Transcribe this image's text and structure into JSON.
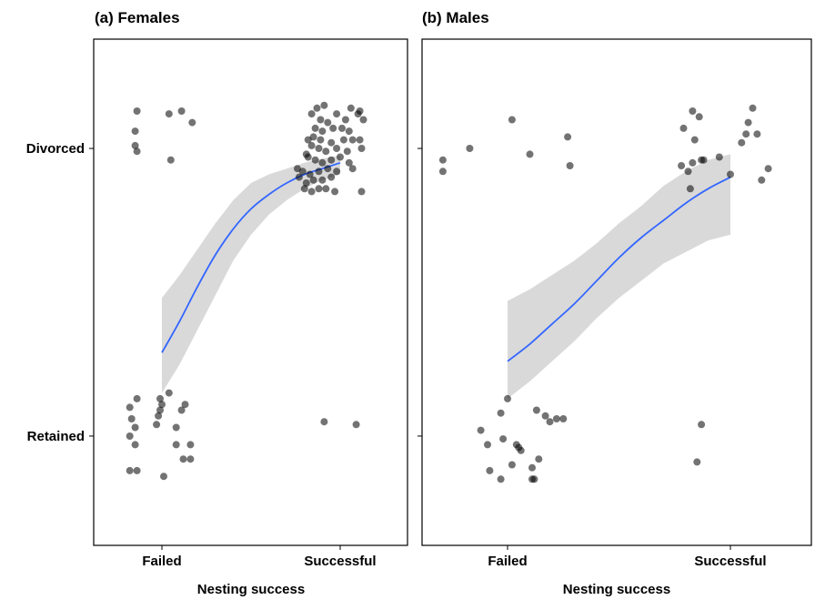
{
  "chart_data": [
    {
      "type": "scatter",
      "title": "(a) Females",
      "xlabel": "Nesting success",
      "ylabel": "",
      "x_categories": [
        "Failed",
        "Successful"
      ],
      "y_categories": [
        "Retained",
        "Divorced"
      ],
      "ylim": [
        -0.38,
        1.38
      ],
      "fit": {
        "color": "#3366ff",
        "x": [
          0,
          0.1,
          0.2,
          0.3,
          0.4,
          0.5,
          0.6,
          0.7,
          0.8,
          0.9,
          1.0
        ],
        "y": [
          0.29,
          0.4,
          0.52,
          0.63,
          0.72,
          0.79,
          0.84,
          0.88,
          0.91,
          0.93,
          0.95
        ],
        "ci_low": [
          0.15,
          0.25,
          0.37,
          0.49,
          0.61,
          0.7,
          0.77,
          0.82,
          0.86,
          0.89,
          0.91
        ],
        "ci_high": [
          0.48,
          0.56,
          0.65,
          0.74,
          0.82,
          0.88,
          0.91,
          0.93,
          0.95,
          0.965,
          0.975
        ]
      },
      "points": [
        {
          "x": -0.15,
          "y": 1.06
        },
        {
          "x": -0.14,
          "y": 1.13
        },
        {
          "x": -0.15,
          "y": 1.01
        },
        {
          "x": -0.14,
          "y": 0.99
        },
        {
          "x": 0.04,
          "y": 1.12
        },
        {
          "x": 0.11,
          "y": 1.13
        },
        {
          "x": 0.17,
          "y": 1.09
        },
        {
          "x": 0.05,
          "y": 0.96
        },
        {
          "x": -0.18,
          "y": 0.1
        },
        {
          "x": -0.14,
          "y": 0.13
        },
        {
          "x": -0.17,
          "y": 0.06
        },
        {
          "x": -0.15,
          "y": 0.03
        },
        {
          "x": -0.18,
          "y": 0.0
        },
        {
          "x": -0.15,
          "y": -0.03
        },
        {
          "x": -0.18,
          "y": -0.12
        },
        {
          "x": -0.14,
          "y": -0.12
        },
        {
          "x": -0.01,
          "y": 0.13
        },
        {
          "x": 0.04,
          "y": 0.15
        },
        {
          "x": 0.0,
          "y": 0.11
        },
        {
          "x": -0.01,
          "y": 0.09
        },
        {
          "x": -0.02,
          "y": 0.07
        },
        {
          "x": -0.03,
          "y": 0.04
        },
        {
          "x": 0.13,
          "y": 0.11
        },
        {
          "x": 0.11,
          "y": 0.09
        },
        {
          "x": 0.08,
          "y": 0.03
        },
        {
          "x": 0.08,
          "y": -0.03
        },
        {
          "x": 0.16,
          "y": -0.03
        },
        {
          "x": 0.16,
          "y": -0.08
        },
        {
          "x": 0.12,
          "y": -0.08
        },
        {
          "x": 0.01,
          "y": -0.14
        },
        {
          "x": 0.84,
          "y": 1.12
        },
        {
          "x": 0.87,
          "y": 1.14
        },
        {
          "x": 0.89,
          "y": 1.1
        },
        {
          "x": 0.93,
          "y": 1.09
        },
        {
          "x": 0.98,
          "y": 1.12
        },
        {
          "x": 1.03,
          "y": 1.1
        },
        {
          "x": 1.06,
          "y": 1.14
        },
        {
          "x": 1.1,
          "y": 1.12
        },
        {
          "x": 1.11,
          "y": 1.13
        },
        {
          "x": 1.13,
          "y": 1.1
        },
        {
          "x": 0.86,
          "y": 1.07
        },
        {
          "x": 0.9,
          "y": 1.06
        },
        {
          "x": 0.96,
          "y": 1.07
        },
        {
          "x": 1.01,
          "y": 1.07
        },
        {
          "x": 1.05,
          "y": 1.06
        },
        {
          "x": 0.82,
          "y": 1.03
        },
        {
          "x": 0.85,
          "y": 1.04
        },
        {
          "x": 0.89,
          "y": 1.03
        },
        {
          "x": 0.95,
          "y": 1.02
        },
        {
          "x": 1.02,
          "y": 1.03
        },
        {
          "x": 1.07,
          "y": 1.03
        },
        {
          "x": 1.11,
          "y": 1.03
        },
        {
          "x": 0.84,
          "y": 1.01
        },
        {
          "x": 0.88,
          "y": 1.0
        },
        {
          "x": 0.92,
          "y": 0.99
        },
        {
          "x": 0.98,
          "y": 1.0
        },
        {
          "x": 1.04,
          "y": 0.99
        },
        {
          "x": 1.12,
          "y": 1.0
        },
        {
          "x": 0.82,
          "y": 0.97
        },
        {
          "x": 0.86,
          "y": 0.96
        },
        {
          "x": 0.9,
          "y": 0.95
        },
        {
          "x": 0.95,
          "y": 0.96
        },
        {
          "x": 1.0,
          "y": 0.97
        },
        {
          "x": 1.05,
          "y": 0.95
        },
        {
          "x": 0.76,
          "y": 0.93
        },
        {
          "x": 0.79,
          "y": 0.92
        },
        {
          "x": 0.83,
          "y": 0.91
        },
        {
          "x": 0.88,
          "y": 0.92
        },
        {
          "x": 0.93,
          "y": 0.93
        },
        {
          "x": 0.98,
          "y": 0.92
        },
        {
          "x": 1.07,
          "y": 0.93
        },
        {
          "x": 0.77,
          "y": 0.9
        },
        {
          "x": 0.81,
          "y": 0.88
        },
        {
          "x": 0.85,
          "y": 0.89
        },
        {
          "x": 0.9,
          "y": 0.89
        },
        {
          "x": 0.95,
          "y": 0.9
        },
        {
          "x": 0.8,
          "y": 0.86
        },
        {
          "x": 0.84,
          "y": 0.85
        },
        {
          "x": 0.88,
          "y": 0.86
        },
        {
          "x": 0.92,
          "y": 0.86
        },
        {
          "x": 0.97,
          "y": 0.85
        },
        {
          "x": 1.12,
          "y": 0.85
        },
        {
          "x": 0.91,
          "y": 1.15
        },
        {
          "x": 0.81,
          "y": 0.98
        },
        {
          "x": 0.91,
          "y": 0.05
        },
        {
          "x": 1.09,
          "y": 0.04
        }
      ]
    },
    {
      "type": "scatter",
      "title": "(b) Males",
      "xlabel": "Nesting success",
      "ylabel": "",
      "x_categories": [
        "Failed",
        "Successful"
      ],
      "y_categories": [
        "Retained",
        "Divorced"
      ],
      "ylim": [
        -0.38,
        1.38
      ],
      "fit": {
        "color": "#3366ff",
        "x": [
          0,
          0.1,
          0.2,
          0.3,
          0.4,
          0.5,
          0.6,
          0.7,
          0.8,
          0.9,
          1.0
        ],
        "y": [
          0.26,
          0.32,
          0.39,
          0.46,
          0.54,
          0.62,
          0.69,
          0.75,
          0.81,
          0.86,
          0.9
        ],
        "ci_low": [
          0.13,
          0.19,
          0.26,
          0.33,
          0.41,
          0.48,
          0.54,
          0.6,
          0.64,
          0.68,
          0.7
        ],
        "ci_high": [
          0.47,
          0.51,
          0.56,
          0.61,
          0.67,
          0.74,
          0.8,
          0.87,
          0.92,
          0.96,
          0.98
        ]
      },
      "points": [
        {
          "x": -0.29,
          "y": 0.96
        },
        {
          "x": -0.29,
          "y": 0.92
        },
        {
          "x": -0.17,
          "y": 1.0
        },
        {
          "x": 0.02,
          "y": 1.1
        },
        {
          "x": 0.1,
          "y": 0.98
        },
        {
          "x": 0.27,
          "y": 1.04
        },
        {
          "x": 0.28,
          "y": 0.94
        },
        {
          "x": -0.12,
          "y": 0.02
        },
        {
          "x": -0.09,
          "y": -0.03
        },
        {
          "x": -0.08,
          "y": -0.12
        },
        {
          "x": 0.0,
          "y": 0.13
        },
        {
          "x": -0.03,
          "y": 0.08
        },
        {
          "x": -0.02,
          "y": -0.01
        },
        {
          "x": 0.04,
          "y": -0.03
        },
        {
          "x": 0.05,
          "y": -0.04
        },
        {
          "x": 0.06,
          "y": -0.05
        },
        {
          "x": 0.14,
          "y": -0.08
        },
        {
          "x": 0.11,
          "y": -0.11
        },
        {
          "x": 0.11,
          "y": -0.15
        },
        {
          "x": 0.12,
          "y": -0.15
        },
        {
          "x": 0.13,
          "y": 0.09
        },
        {
          "x": 0.17,
          "y": 0.07
        },
        {
          "x": 0.19,
          "y": 0.05
        },
        {
          "x": 0.22,
          "y": 0.06
        },
        {
          "x": 0.25,
          "y": 0.06
        },
        {
          "x": -0.03,
          "y": -0.15
        },
        {
          "x": 0.02,
          "y": -0.1
        },
        {
          "x": 0.83,
          "y": 1.13
        },
        {
          "x": 0.86,
          "y": 1.11
        },
        {
          "x": 0.79,
          "y": 1.07
        },
        {
          "x": 0.84,
          "y": 1.03
        },
        {
          "x": 0.87,
          "y": 0.96
        },
        {
          "x": 0.88,
          "y": 0.96
        },
        {
          "x": 0.81,
          "y": 0.92
        },
        {
          "x": 0.83,
          "y": 0.95
        },
        {
          "x": 0.95,
          "y": 0.97
        },
        {
          "x": 1.05,
          "y": 1.02
        },
        {
          "x": 1.08,
          "y": 1.09
        },
        {
          "x": 1.1,
          "y": 1.14
        },
        {
          "x": 1.12,
          "y": 1.05
        },
        {
          "x": 1.17,
          "y": 0.93
        },
        {
          "x": 1.14,
          "y": 0.89
        },
        {
          "x": 1.0,
          "y": 0.91
        },
        {
          "x": 0.78,
          "y": 0.94
        },
        {
          "x": 1.07,
          "y": 1.05
        },
        {
          "x": 0.82,
          "y": 0.86
        },
        {
          "x": 0.87,
          "y": 0.04
        },
        {
          "x": 0.85,
          "y": -0.09
        }
      ]
    }
  ]
}
